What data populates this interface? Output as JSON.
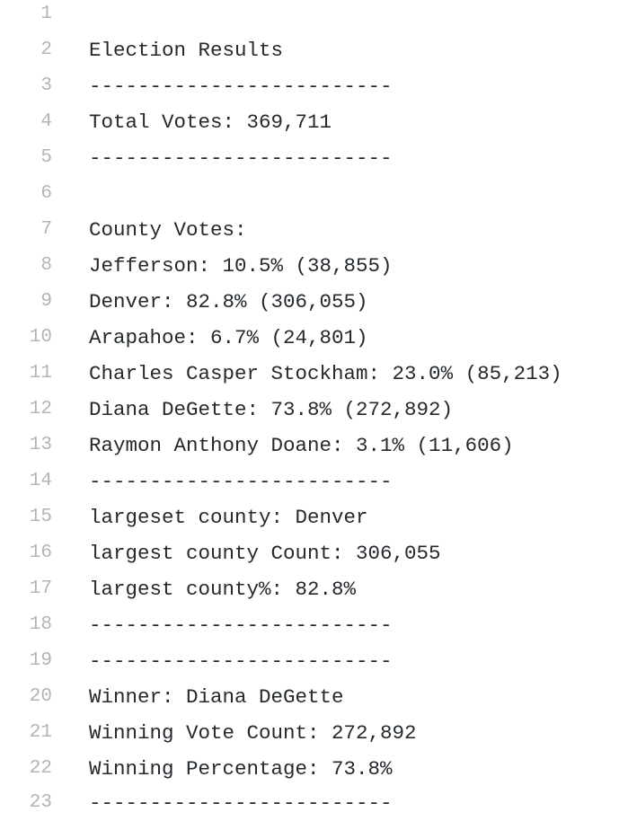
{
  "lines": [
    {
      "num": "1",
      "text": ""
    },
    {
      "num": "2",
      "text": "Election Results"
    },
    {
      "num": "3",
      "text": "-------------------------"
    },
    {
      "num": "4",
      "text": "Total Votes: 369,711"
    },
    {
      "num": "5",
      "text": "-------------------------"
    },
    {
      "num": "6",
      "text": ""
    },
    {
      "num": "7",
      "text": "County Votes:"
    },
    {
      "num": "8",
      "text": "Jefferson: 10.5% (38,855)"
    },
    {
      "num": "9",
      "text": "Denver: 82.8% (306,055)"
    },
    {
      "num": "10",
      "text": "Arapahoe: 6.7% (24,801)"
    },
    {
      "num": "11",
      "text": "Charles Casper Stockham: 23.0% (85,213)"
    },
    {
      "num": "12",
      "text": "Diana DeGette: 73.8% (272,892)"
    },
    {
      "num": "13",
      "text": "Raymon Anthony Doane: 3.1% (11,606)"
    },
    {
      "num": "14",
      "text": "-------------------------"
    },
    {
      "num": "15",
      "text": "largeset county: Denver"
    },
    {
      "num": "16",
      "text": "largest county Count: 306,055"
    },
    {
      "num": "17",
      "text": "largest county%: 82.8%"
    },
    {
      "num": "18",
      "text": "-------------------------"
    },
    {
      "num": "19",
      "text": "-------------------------"
    },
    {
      "num": "20",
      "text": "Winner: Diana DeGette"
    },
    {
      "num": "21",
      "text": "Winning Vote Count: 272,892"
    },
    {
      "num": "22",
      "text": "Winning Percentage: 73.8%"
    },
    {
      "num": "23",
      "text": "-------------------------"
    }
  ]
}
